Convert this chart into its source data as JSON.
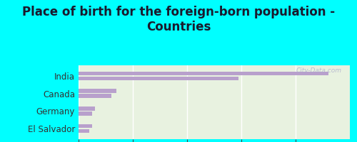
{
  "title": "Place of birth for the foreign-born population -\nCountries",
  "categories": [
    "India",
    "Canada",
    "Germany",
    "El Salvador"
  ],
  "values_a": [
    92,
    14,
    6,
    5
  ],
  "values_b": [
    59,
    12,
    5,
    4
  ],
  "bar_color": "#b8a0cc",
  "background_outer": "#00ffff",
  "background_inner": "#e8f2e0",
  "xlim": [
    0,
    100
  ],
  "xticks": [
    0,
    20,
    40,
    60,
    80
  ],
  "title_fontsize": 12,
  "tick_fontsize": 8.5,
  "label_fontsize": 8.5,
  "title_color": "#1a1a2e"
}
